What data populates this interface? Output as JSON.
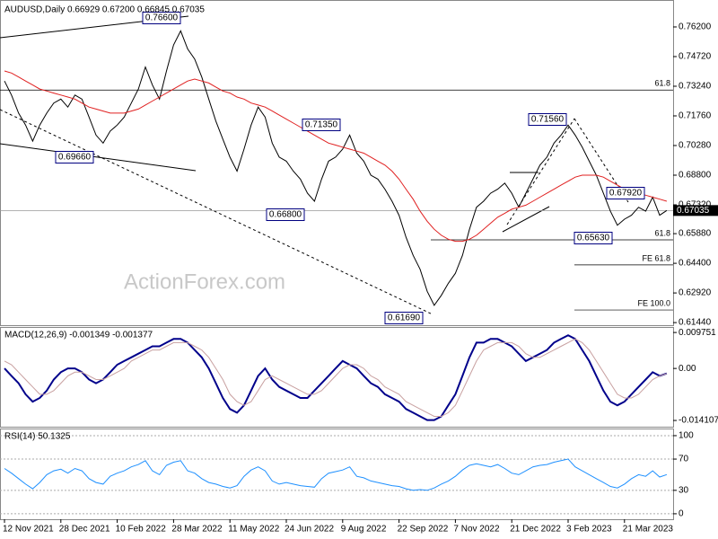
{
  "chart_data": [
    {
      "type": "line",
      "title": "AUDUSD,Daily  0.66929 0.67200 0.66845 0.67035",
      "categories": [
        "12 Nov 2021",
        null,
        null,
        null,
        null,
        null,
        null,
        null,
        "28 Dec 2021",
        null,
        null,
        null,
        null,
        null,
        null,
        null,
        "10 Feb 2022",
        null,
        null,
        null,
        null,
        null,
        null,
        null,
        "28 Mar 2022",
        null,
        null,
        null,
        null,
        null,
        null,
        null,
        "11 May 2022",
        null,
        null,
        null,
        null,
        null,
        null,
        null,
        "24 Jun 2022",
        null,
        null,
        null,
        null,
        null,
        null,
        null,
        "9 Aug 2022",
        null,
        null,
        null,
        null,
        null,
        null,
        null,
        "22 Sep 2022",
        null,
        null,
        null,
        null,
        null,
        null,
        null,
        "7 Nov 2022",
        null,
        null,
        null,
        null,
        null,
        null,
        null,
        "21 Dec 2022",
        null,
        null,
        null,
        null,
        null,
        null,
        null,
        "3 Feb 2023",
        null,
        null,
        null,
        null,
        null,
        null,
        null,
        "21 Mar 2023",
        null,
        null,
        null,
        null,
        null,
        null
      ],
      "series": [
        {
          "color": "#000000",
          "values": [
            0.735,
            0.728,
            0.719,
            0.713,
            0.705,
            0.713,
            0.719,
            0.724,
            0.726,
            0.722,
            0.728,
            0.726,
            0.717,
            0.708,
            0.704,
            0.71,
            0.713,
            0.717,
            0.724,
            0.731,
            0.742,
            0.733,
            0.726,
            0.74,
            0.753,
            0.76,
            0.751,
            0.746,
            0.737,
            0.726,
            0.715,
            0.706,
            0.697,
            0.69,
            0.701,
            0.713,
            0.722,
            0.717,
            0.704,
            0.697,
            0.695,
            0.69,
            0.686,
            0.679,
            0.675,
            0.686,
            0.695,
            0.697,
            0.701,
            0.708,
            0.699,
            0.695,
            0.688,
            0.686,
            0.681,
            0.675,
            0.668,
            0.657,
            0.648,
            0.641,
            0.63,
            0.623,
            0.628,
            0.634,
            0.639,
            0.648,
            0.661,
            0.672,
            0.675,
            0.679,
            0.681,
            0.684,
            0.679,
            0.672,
            0.679,
            0.686,
            0.693,
            0.697,
            0.704,
            0.708,
            0.713,
            0.708,
            0.702,
            0.695,
            0.688,
            0.679,
            0.67,
            0.663,
            0.666,
            0.668,
            0.672,
            0.67,
            0.677,
            0.668,
            0.67035
          ]
        },
        {
          "color": "#e02020",
          "values": [
            0.74,
            0.739,
            0.737,
            0.735,
            0.733,
            0.731,
            0.73,
            0.729,
            0.728,
            0.727,
            0.726,
            0.724,
            0.722,
            0.721,
            0.72,
            0.719,
            0.719,
            0.719,
            0.72,
            0.721,
            0.723,
            0.725,
            0.727,
            0.729,
            0.731,
            0.733,
            0.735,
            0.736,
            0.735,
            0.734,
            0.732,
            0.73,
            0.729,
            0.727,
            0.726,
            0.724,
            0.723,
            0.722,
            0.72,
            0.718,
            0.716,
            0.714,
            0.712,
            0.71,
            0.708,
            0.706,
            0.704,
            0.703,
            0.702,
            0.701,
            0.7,
            0.699,
            0.697,
            0.695,
            0.693,
            0.69,
            0.686,
            0.681,
            0.676,
            0.67,
            0.665,
            0.661,
            0.658,
            0.656,
            0.655,
            0.655,
            0.656,
            0.658,
            0.661,
            0.664,
            0.667,
            0.669,
            0.671,
            0.672,
            0.673,
            0.675,
            0.677,
            0.679,
            0.681,
            0.683,
            0.685,
            0.687,
            0.688,
            0.688,
            0.688,
            0.687,
            0.685,
            0.683,
            0.681,
            0.68,
            0.679,
            0.678,
            0.677,
            0.676,
            0.675
          ]
        }
      ],
      "ylim": [
        0.6131,
        0.7741
      ],
      "yticks": [
        {
          "value": 0.762,
          "label": "0.76200"
        },
        {
          "value": 0.7472,
          "label": "0.74720"
        },
        {
          "value": 0.7324,
          "label": "0.73240"
        },
        {
          "value": 0.7176,
          "label": "0.71760"
        },
        {
          "value": 0.7028,
          "label": "0.70280"
        },
        {
          "value": 0.688,
          "label": "0.68800"
        },
        {
          "value": 0.6732,
          "label": "0.67320"
        },
        {
          "value": 0.6588,
          "label": "0.65880"
        },
        {
          "value": 0.644,
          "label": "0.64400"
        },
        {
          "value": 0.6292,
          "label": "0.62920"
        },
        {
          "value": 0.6144,
          "label": "0.61440"
        }
      ],
      "last": {
        "value": 0.67035,
        "label": "0.67035"
      },
      "levels": [
        {
          "value": 0.7305,
          "label": "61.8"
        },
        {
          "value": 0.6557,
          "label": "61.8"
        },
        {
          "value": 0.6432,
          "label": "FE 61.8"
        },
        {
          "value": 0.6207,
          "label": "FE 100.0"
        }
      ],
      "annotations": [
        "0.76600",
        "0.69660",
        "0.71350",
        "0.66800",
        "0.61690",
        "0.71560",
        "0.67920",
        "0.65630"
      ],
      "watermark": "ActionForex.com"
    },
    {
      "type": "line",
      "title": "MACD(12,26,9) -0.001349 -0.001377",
      "series": [
        {
          "color": "#00008b",
          "values": [
            0.0,
            -0.002,
            -0.004,
            -0.007,
            -0.009,
            -0.008,
            -0.006,
            -0.003,
            -0.001,
            0.0,
            0.0,
            -0.001,
            -0.003,
            -0.004,
            -0.003,
            -0.001,
            0.001,
            0.002,
            0.003,
            0.004,
            0.005,
            0.006,
            0.006,
            0.007,
            0.008,
            0.008,
            0.007,
            0.005,
            0.003,
            0.0,
            -0.004,
            -0.008,
            -0.011,
            -0.012,
            -0.01,
            -0.006,
            -0.002,
            0.0,
            -0.003,
            -0.005,
            -0.006,
            -0.007,
            -0.008,
            -0.008,
            -0.006,
            -0.004,
            -0.002,
            0.0,
            0.002,
            0.001,
            0.0,
            -0.002,
            -0.004,
            -0.005,
            -0.007,
            -0.008,
            -0.009,
            -0.011,
            -0.012,
            -0.013,
            -0.014,
            -0.014,
            -0.013,
            -0.01,
            -0.007,
            -0.002,
            0.003,
            0.007,
            0.007,
            0.008,
            0.008,
            0.007,
            0.006,
            0.004,
            0.002,
            0.003,
            0.004,
            0.005,
            0.007,
            0.008,
            0.009,
            0.008,
            0.005,
            0.002,
            -0.002,
            -0.006,
            -0.009,
            -0.01,
            -0.009,
            -0.007,
            -0.005,
            -0.003,
            -0.001,
            -0.002,
            -0.001349
          ]
        },
        {
          "color": "#c8a0a0",
          "values": [
            0.002,
            0.001,
            -0.001,
            -0.003,
            -0.005,
            -0.007,
            -0.007,
            -0.006,
            -0.004,
            -0.002,
            -0.001,
            -0.001,
            -0.002,
            -0.003,
            -0.003,
            -0.002,
            -0.001,
            0.0,
            0.002,
            0.003,
            0.004,
            0.005,
            0.005,
            0.006,
            0.007,
            0.007,
            0.007,
            0.006,
            0.005,
            0.003,
            0.0,
            -0.003,
            -0.007,
            -0.009,
            -0.01,
            -0.009,
            -0.006,
            -0.003,
            -0.002,
            -0.003,
            -0.004,
            -0.005,
            -0.006,
            -0.007,
            -0.007,
            -0.006,
            -0.004,
            -0.002,
            0.0,
            0.001,
            0.001,
            0.0,
            -0.002,
            -0.003,
            -0.005,
            -0.006,
            -0.007,
            -0.009,
            -0.01,
            -0.011,
            -0.012,
            -0.013,
            -0.013,
            -0.012,
            -0.01,
            -0.006,
            -0.002,
            0.002,
            0.005,
            0.006,
            0.007,
            0.007,
            0.007,
            0.006,
            0.004,
            0.003,
            0.003,
            0.004,
            0.005,
            0.006,
            0.007,
            0.008,
            0.007,
            0.005,
            0.002,
            -0.001,
            -0.004,
            -0.007,
            -0.008,
            -0.008,
            -0.007,
            -0.005,
            -0.003,
            -0.002,
            -0.001377
          ]
        }
      ],
      "ylim": [
        -0.0158,
        0.011
      ],
      "yticks": [
        0.009751,
        {
          "value": 0,
          "label": "0.00"
        },
        -0.014107
      ]
    },
    {
      "type": "line",
      "title": "RSI(14) 50.1325",
      "series": [
        {
          "color": "#1e90ff",
          "values": [
            58,
            52,
            45,
            38,
            32,
            40,
            50,
            55,
            57,
            52,
            58,
            55,
            45,
            40,
            38,
            48,
            52,
            55,
            60,
            63,
            68,
            55,
            50,
            62,
            66,
            68,
            55,
            52,
            45,
            40,
            38,
            35,
            33,
            36,
            48,
            56,
            60,
            55,
            42,
            38,
            40,
            38,
            36,
            35,
            34,
            45,
            52,
            54,
            56,
            60,
            48,
            46,
            42,
            40,
            38,
            36,
            35,
            32,
            30,
            31,
            30,
            33,
            38,
            42,
            48,
            56,
            62,
            64,
            62,
            60,
            63,
            58,
            52,
            50,
            55,
            60,
            62,
            63,
            66,
            68,
            70,
            60,
            55,
            50,
            45,
            40,
            35,
            33,
            38,
            45,
            50,
            48,
            55,
            47,
            50.1325
          ]
        }
      ],
      "ylim": [
        -7,
        108
      ],
      "yticks": [
        0,
        30,
        70,
        100
      ],
      "grid": true
    }
  ]
}
